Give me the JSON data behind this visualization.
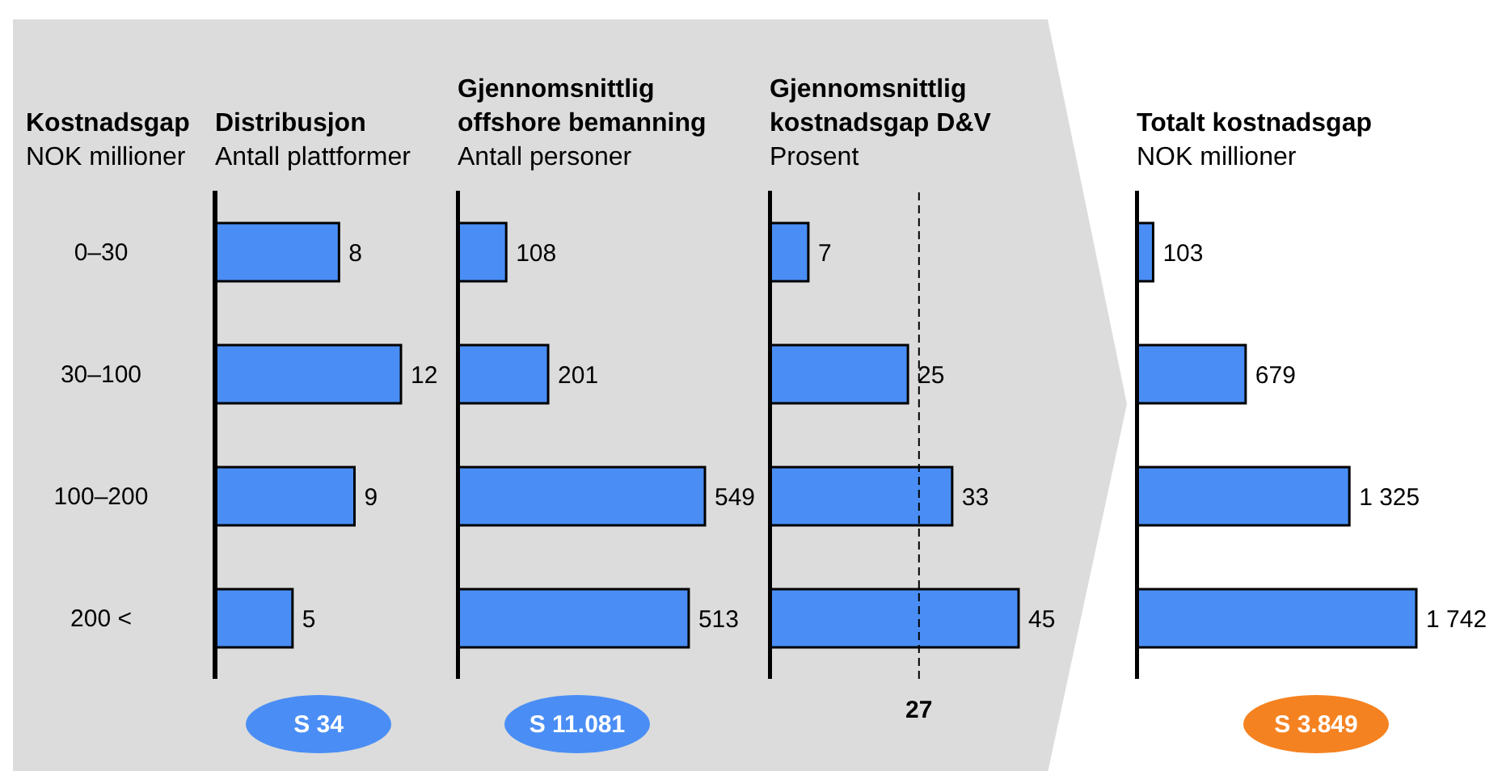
{
  "chart_data": [
    {
      "type": "bar",
      "orientation": "horizontal",
      "ylabel": "Kostnadsgap\nNOK millioner",
      "title": "Distribusjon",
      "subtitle": "Antall plattformer",
      "categories": [
        "0–30",
        "30–100",
        "100–200",
        "200 <"
      ],
      "values": [
        8,
        12,
        9,
        5
      ],
      "color": "#4a8ef5",
      "data_labels": true,
      "tick_labels": "y",
      "annotations": [
        "S 34"
      ]
    },
    {
      "type": "bar",
      "orientation": "horizontal",
      "title": "Gjennomsnittlig offshore bemanning",
      "subtitle": "Antall personer",
      "categories": [
        null,
        null,
        null,
        null
      ],
      "values": [
        108,
        201,
        549,
        513
      ],
      "color": "#4a8ef5",
      "data_labels": true,
      "tick_labels": false,
      "annotations": [
        "S 11.081"
      ]
    },
    {
      "type": "bar",
      "orientation": "horizontal",
      "title": "Gjennomsnittlig kostnadsgap D&V",
      "subtitle": "Prosent",
      "categories": [
        null,
        null,
        null,
        null
      ],
      "values": [
        7,
        25,
        33,
        45
      ],
      "color": "#4a8ef5",
      "data_labels": true,
      "tick_labels": false,
      "ref_lines": [
        {
          "axis": "x",
          "value": 27,
          "label": "27",
          "line_style": "dashed"
        }
      ]
    },
    {
      "type": "bar",
      "orientation": "horizontal",
      "title": "Totalt kostnadsgap",
      "subtitle": "NOK millioner",
      "categories": [
        null,
        null,
        null,
        null
      ],
      "values": [
        103,
        679,
        1325,
        1742
      ],
      "value_labels": [
        "103",
        "679",
        "1 325",
        "1 742"
      ],
      "color": "#4a8ef5",
      "tick_labels": false,
      "annotations": [
        "S 3.849"
      ]
    }
  ]
}
